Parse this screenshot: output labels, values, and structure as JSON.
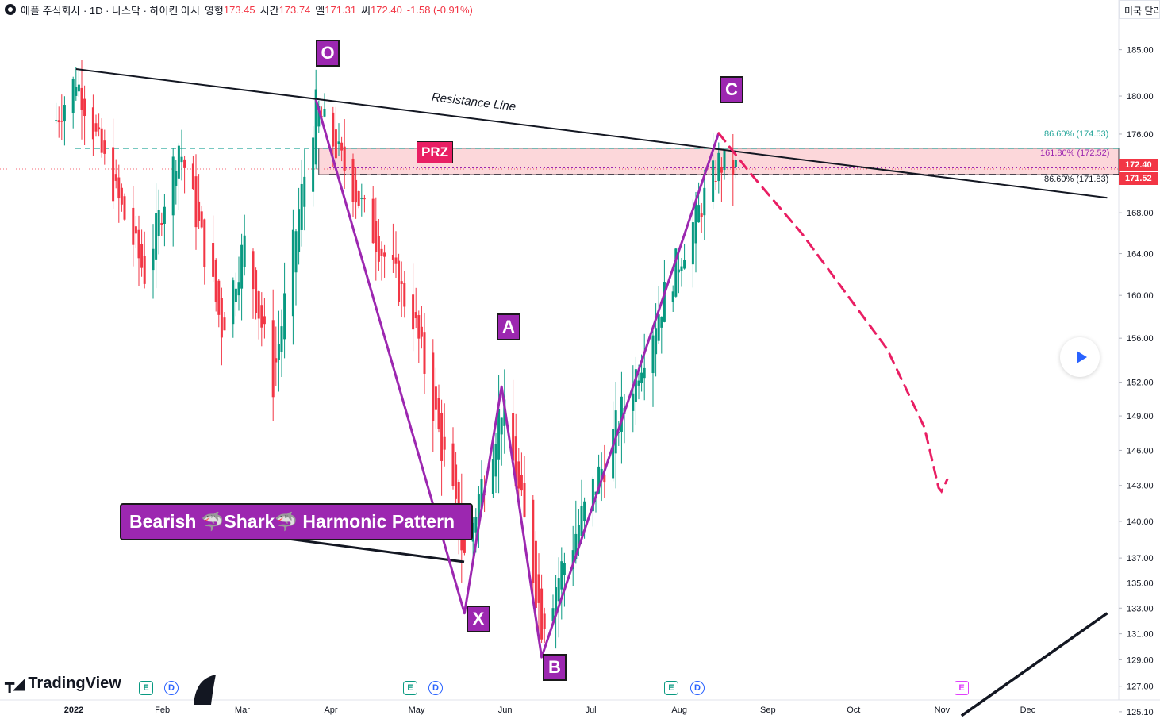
{
  "header": {
    "symbol_title": "애플 주식회사 · 1D · 나스닥 · 하이킨 아시",
    "open_label": "영형",
    "open_value": "173.45",
    "high_label": "시간",
    "high_value": "173.74",
    "low_label": "엘",
    "low_value": "171.31",
    "close_label": "씨",
    "close_value": "172.40",
    "change_value": "-1.58 (-0.91%)",
    "currency_button": "미국 달러"
  },
  "branding": {
    "logo_text": "TradingView"
  },
  "annotations": {
    "points": [
      {
        "label": "O",
        "date": "2022-03-29",
        "price": 179.6
      },
      {
        "label": "X",
        "date": "2022-05-20",
        "price": 132.6
      },
      {
        "label": "A",
        "date": "2022-06-02",
        "price": 151.6
      },
      {
        "label": "B",
        "date": "2022-06-16",
        "price": 129.2
      },
      {
        "label": "C",
        "date": "2022-08-17",
        "price": 176.1
      }
    ],
    "prz_label": "PRZ",
    "resistance_label": "Resistance Line",
    "pattern_label": "Bearish 🦈Shark🦈 Harmonic Pattern",
    "fib_levels": [
      {
        "label": "86.60% (174.53)",
        "price": 174.53,
        "color": "#26a69a"
      },
      {
        "label": "161.80% (172.52)",
        "price": 172.52,
        "color": "#9c27b0"
      },
      {
        "label": "86.60% (171.83)",
        "price": 171.83,
        "color": "#131722"
      }
    ],
    "price_tags": [
      {
        "value": "172.40",
        "color": "#f23645"
      },
      {
        "value": "171.52",
        "color": "#f23645"
      }
    ],
    "events": [
      {
        "type": "E",
        "date": "2022-02-01"
      },
      {
        "type": "D",
        "date": "2022-02-04"
      },
      {
        "type": "E",
        "date": "2022-04-28"
      },
      {
        "type": "D",
        "date": "2022-05-06"
      },
      {
        "type": "E",
        "date": "2022-07-28"
      },
      {
        "type": "D",
        "date": "2022-08-05"
      },
      {
        "type": "E",
        "date": "2022-10-27"
      }
    ]
  },
  "chart_data": {
    "type": "candlestick",
    "title": "애플 주식회사 · 1D · 나스닥 · 하이킨 아시",
    "x_tick_labels": [
      "2022",
      "Feb",
      "Mar",
      "Apr",
      "May",
      "Jun",
      "Jul",
      "Aug",
      "Sep",
      "Oct",
      "Nov",
      "Dec"
    ],
    "y_tick_labels": [
      "125.10",
      "127.00",
      "129.00",
      "131.00",
      "133.00",
      "135.00",
      "137.00",
      "140.00",
      "143.00",
      "146.00",
      "149.00",
      "152.00",
      "156.00",
      "160.00",
      "164.00",
      "168.00",
      "176.00",
      "180.00",
      "185.00"
    ],
    "y_scale": "log",
    "ylim": [
      124.8,
      189.0
    ],
    "colors": {
      "up": "#089981",
      "down": "#f23645",
      "pattern": "#9c27b0",
      "projection": "#e91e63"
    },
    "price_path": [
      {
        "date": "2021-12-28",
        "price": 177.5
      },
      {
        "date": "2022-01-04",
        "price": 181.9
      },
      {
        "date": "2022-01-14",
        "price": 173.0
      },
      {
        "date": "2022-01-28",
        "price": 162.0
      },
      {
        "date": "2022-02-09",
        "price": 175.0
      },
      {
        "date": "2022-02-24",
        "price": 157.0
      },
      {
        "date": "2022-03-04",
        "price": 165.0
      },
      {
        "date": "2022-03-14",
        "price": 152.0
      },
      {
        "date": "2022-03-29",
        "price": 179.0
      },
      {
        "date": "2022-04-18",
        "price": 166.0
      },
      {
        "date": "2022-05-02",
        "price": 158.0
      },
      {
        "date": "2022-05-20",
        "price": 137.0
      },
      {
        "date": "2022-06-02",
        "price": 150.0
      },
      {
        "date": "2022-06-16",
        "price": 132.0
      },
      {
        "date": "2022-07-08",
        "price": 145.0
      },
      {
        "date": "2022-07-29",
        "price": 160.0
      },
      {
        "date": "2022-08-17",
        "price": 173.0
      },
      {
        "date": "2022-08-23",
        "price": 172.4
      }
    ],
    "resistance_line": [
      {
        "date": "2022-01-04",
        "price": 182.9
      },
      {
        "date": "2022-12-31",
        "price": 169.5
      }
    ],
    "lower_trend_line": [
      {
        "date": "2022-11-10",
        "price": 124.8
      },
      {
        "date": "2022-12-31",
        "price": 132.6
      }
    ],
    "prz_zone": {
      "from_date": "2022-03-30",
      "to_date": "2022-12-31",
      "low": 171.83,
      "high": 174.53
    },
    "projection": [
      {
        "date": "2022-08-17",
        "price": 176.1
      },
      {
        "date": "2022-08-28",
        "price": 172.0
      },
      {
        "date": "2022-09-15",
        "price": 166.0
      },
      {
        "date": "2022-10-15",
        "price": 155.0
      },
      {
        "date": "2022-10-28",
        "price": 148.0
      },
      {
        "date": "2022-11-02",
        "price": 142.8
      },
      {
        "date": "2022-11-03",
        "price": 142.5
      },
      {
        "date": "2022-11-05",
        "price": 143.5
      }
    ]
  }
}
